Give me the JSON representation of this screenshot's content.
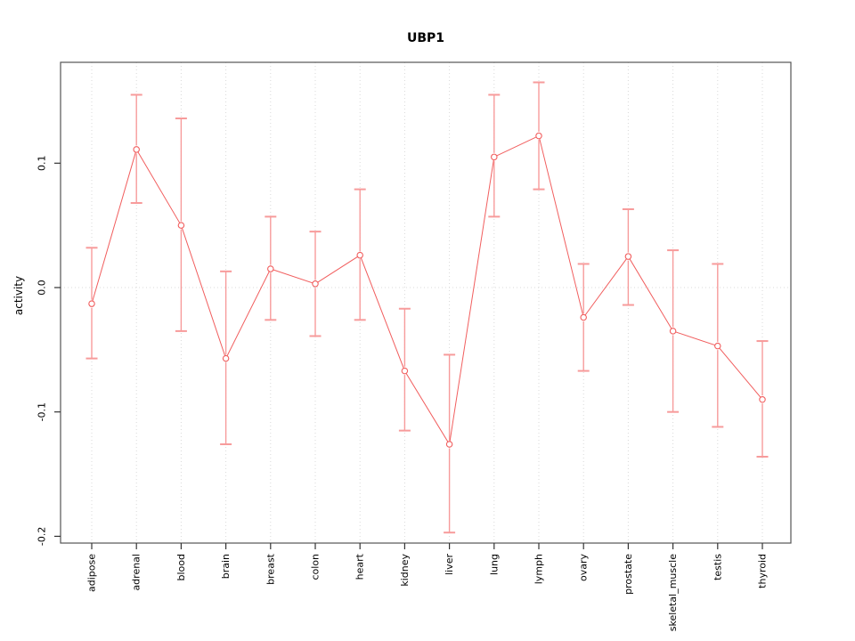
{
  "figure": {
    "title": "UBP1",
    "ylabel": "activity"
  },
  "chart_data": {
    "type": "line",
    "title": "UBP1",
    "xlabel": "",
    "ylabel": "activity",
    "categories": [
      "adipose",
      "adrenal",
      "blood",
      "brain",
      "breast",
      "colon",
      "heart",
      "kidney",
      "liver",
      "lung",
      "lymph",
      "ovary",
      "prostate",
      "skeletal_muscle",
      "testis",
      "thyroid"
    ],
    "series": [
      {
        "name": "activity",
        "values": [
          -0.013,
          0.111,
          0.05,
          -0.057,
          0.015,
          0.003,
          0.026,
          -0.067,
          -0.126,
          0.105,
          0.122,
          -0.024,
          0.025,
          -0.035,
          -0.047,
          -0.09
        ],
        "error_upper": [
          0.032,
          0.155,
          0.136,
          0.013,
          0.057,
          0.045,
          0.079,
          -0.017,
          -0.054,
          0.155,
          0.165,
          0.019,
          0.063,
          0.03,
          0.019,
          -0.043
        ],
        "error_lower": [
          -0.057,
          0.068,
          -0.035,
          -0.126,
          -0.026,
          -0.039,
          -0.026,
          -0.115,
          -0.197,
          0.057,
          0.079,
          -0.067,
          -0.014,
          -0.1,
          -0.112,
          -0.136
        ]
      }
    ],
    "yticks": [
      0.1,
      0.0,
      -0.1,
      -0.2
    ],
    "ytick_labels": [
      "0.1",
      "0.0",
      "-0.1",
      "-0.2"
    ],
    "ylim": [
      -0.205,
      0.181
    ],
    "grid": {
      "vertical": "dotted line at each category",
      "horizontal": "dotted line at y = 0"
    },
    "legend": "none",
    "marker": "open-circle",
    "colors": {
      "line": "#f15e5e",
      "marker": "#f15e5e",
      "error_bar": "#f79b9b",
      "grid": "#d9d9d9",
      "axis_box": "#555555",
      "tick": "#333333"
    }
  }
}
